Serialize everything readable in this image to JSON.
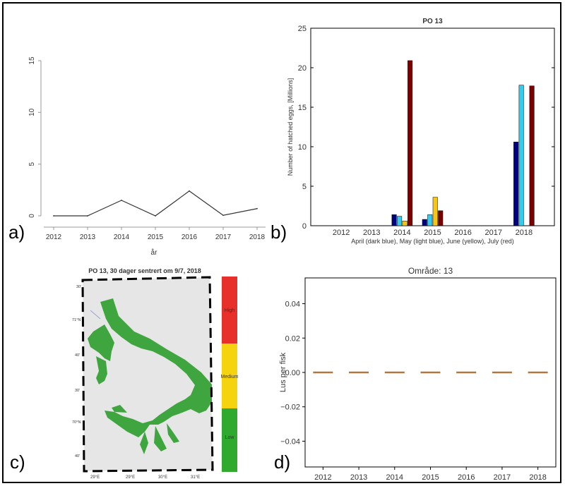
{
  "panels": {
    "a": {
      "letter": "a)"
    },
    "b": {
      "letter": "b)"
    },
    "c": {
      "letter": "c)"
    },
    "d": {
      "letter": "d)"
    }
  },
  "chart_data": [
    {
      "id": "a",
      "type": "line",
      "title": "",
      "xlabel": "år",
      "ylabel": "",
      "x": [
        2012,
        2013,
        2014,
        2015,
        2016,
        2017,
        2018
      ],
      "series": [
        {
          "values": [
            0.0,
            0.0,
            1.5,
            0.0,
            2.4,
            0.05,
            0.7
          ],
          "color": "#333333"
        }
      ],
      "xlim": [
        2012,
        2018
      ],
      "ylim": [
        0,
        15
      ],
      "yticks": [
        0,
        5,
        10,
        15
      ],
      "grid": false
    },
    {
      "id": "b",
      "type": "bar",
      "title": "PO 13",
      "xlabel": "April (dark blue), May (light blue), June (yellow), July (red)",
      "ylabel": "Number of hatched eggs, [Millions]",
      "categories": [
        "2012",
        "2013",
        "2014",
        "2015",
        "2016",
        "2017",
        "2018"
      ],
      "series": [
        {
          "values": [
            0,
            0,
            1.4,
            0.8,
            0,
            0,
            10.6
          ],
          "color": "#000080"
        },
        {
          "values": [
            0,
            0,
            1.2,
            1.4,
            0,
            0,
            17.8
          ],
          "color": "#33ccee"
        },
        {
          "values": [
            0,
            0,
            0.6,
            3.6,
            0,
            0,
            0
          ],
          "color": "#f5c518"
        },
        {
          "values": [
            0,
            0,
            20.9,
            1.9,
            0,
            0,
            17.7
          ],
          "color": "#7a0000"
        }
      ],
      "ylim": [
        0,
        25
      ],
      "yticks": [
        0,
        5,
        10,
        15,
        20,
        25
      ],
      "grid": false
    },
    {
      "id": "c",
      "type": "heatmap",
      "title": "PO 13, 30 dager sentrert om 9/7, 2018",
      "colorbar": {
        "levels": [
          "High",
          "Medium",
          "Low"
        ],
        "colors": [
          "#e8302a",
          "#f5d40f",
          "#2faa2f"
        ]
      },
      "lon_ticks": [
        "29°E",
        "29°E",
        "30°E",
        "31°E"
      ],
      "lat_ticks": [
        "30'",
        "71°N",
        "40'",
        "30'",
        "70°N",
        "40'"
      ],
      "colors": {
        "land": "#e6e6e6",
        "sea": "#3fa53f",
        "border": "#000000"
      }
    },
    {
      "id": "d",
      "type": "scatter",
      "title": "Område: 13",
      "xlabel": "",
      "ylabel": "Lus per fisk",
      "x": [
        2012,
        2013,
        2014,
        2015,
        2016,
        2017,
        2018
      ],
      "series": [
        {
          "values": [
            0,
            0,
            0,
            0,
            0,
            0,
            0
          ],
          "color": "#b07840",
          "marker": "dash"
        }
      ],
      "xlim": [
        2011.5,
        2018.5
      ],
      "ylim": [
        -0.055,
        0.055
      ],
      "yticks": [
        -0.04,
        -0.02,
        0.0,
        0.02,
        0.04
      ],
      "ytick_labels": [
        "−0.04",
        "−0.02",
        "0.00",
        "0.02",
        "0.04"
      ],
      "grid": false
    }
  ]
}
